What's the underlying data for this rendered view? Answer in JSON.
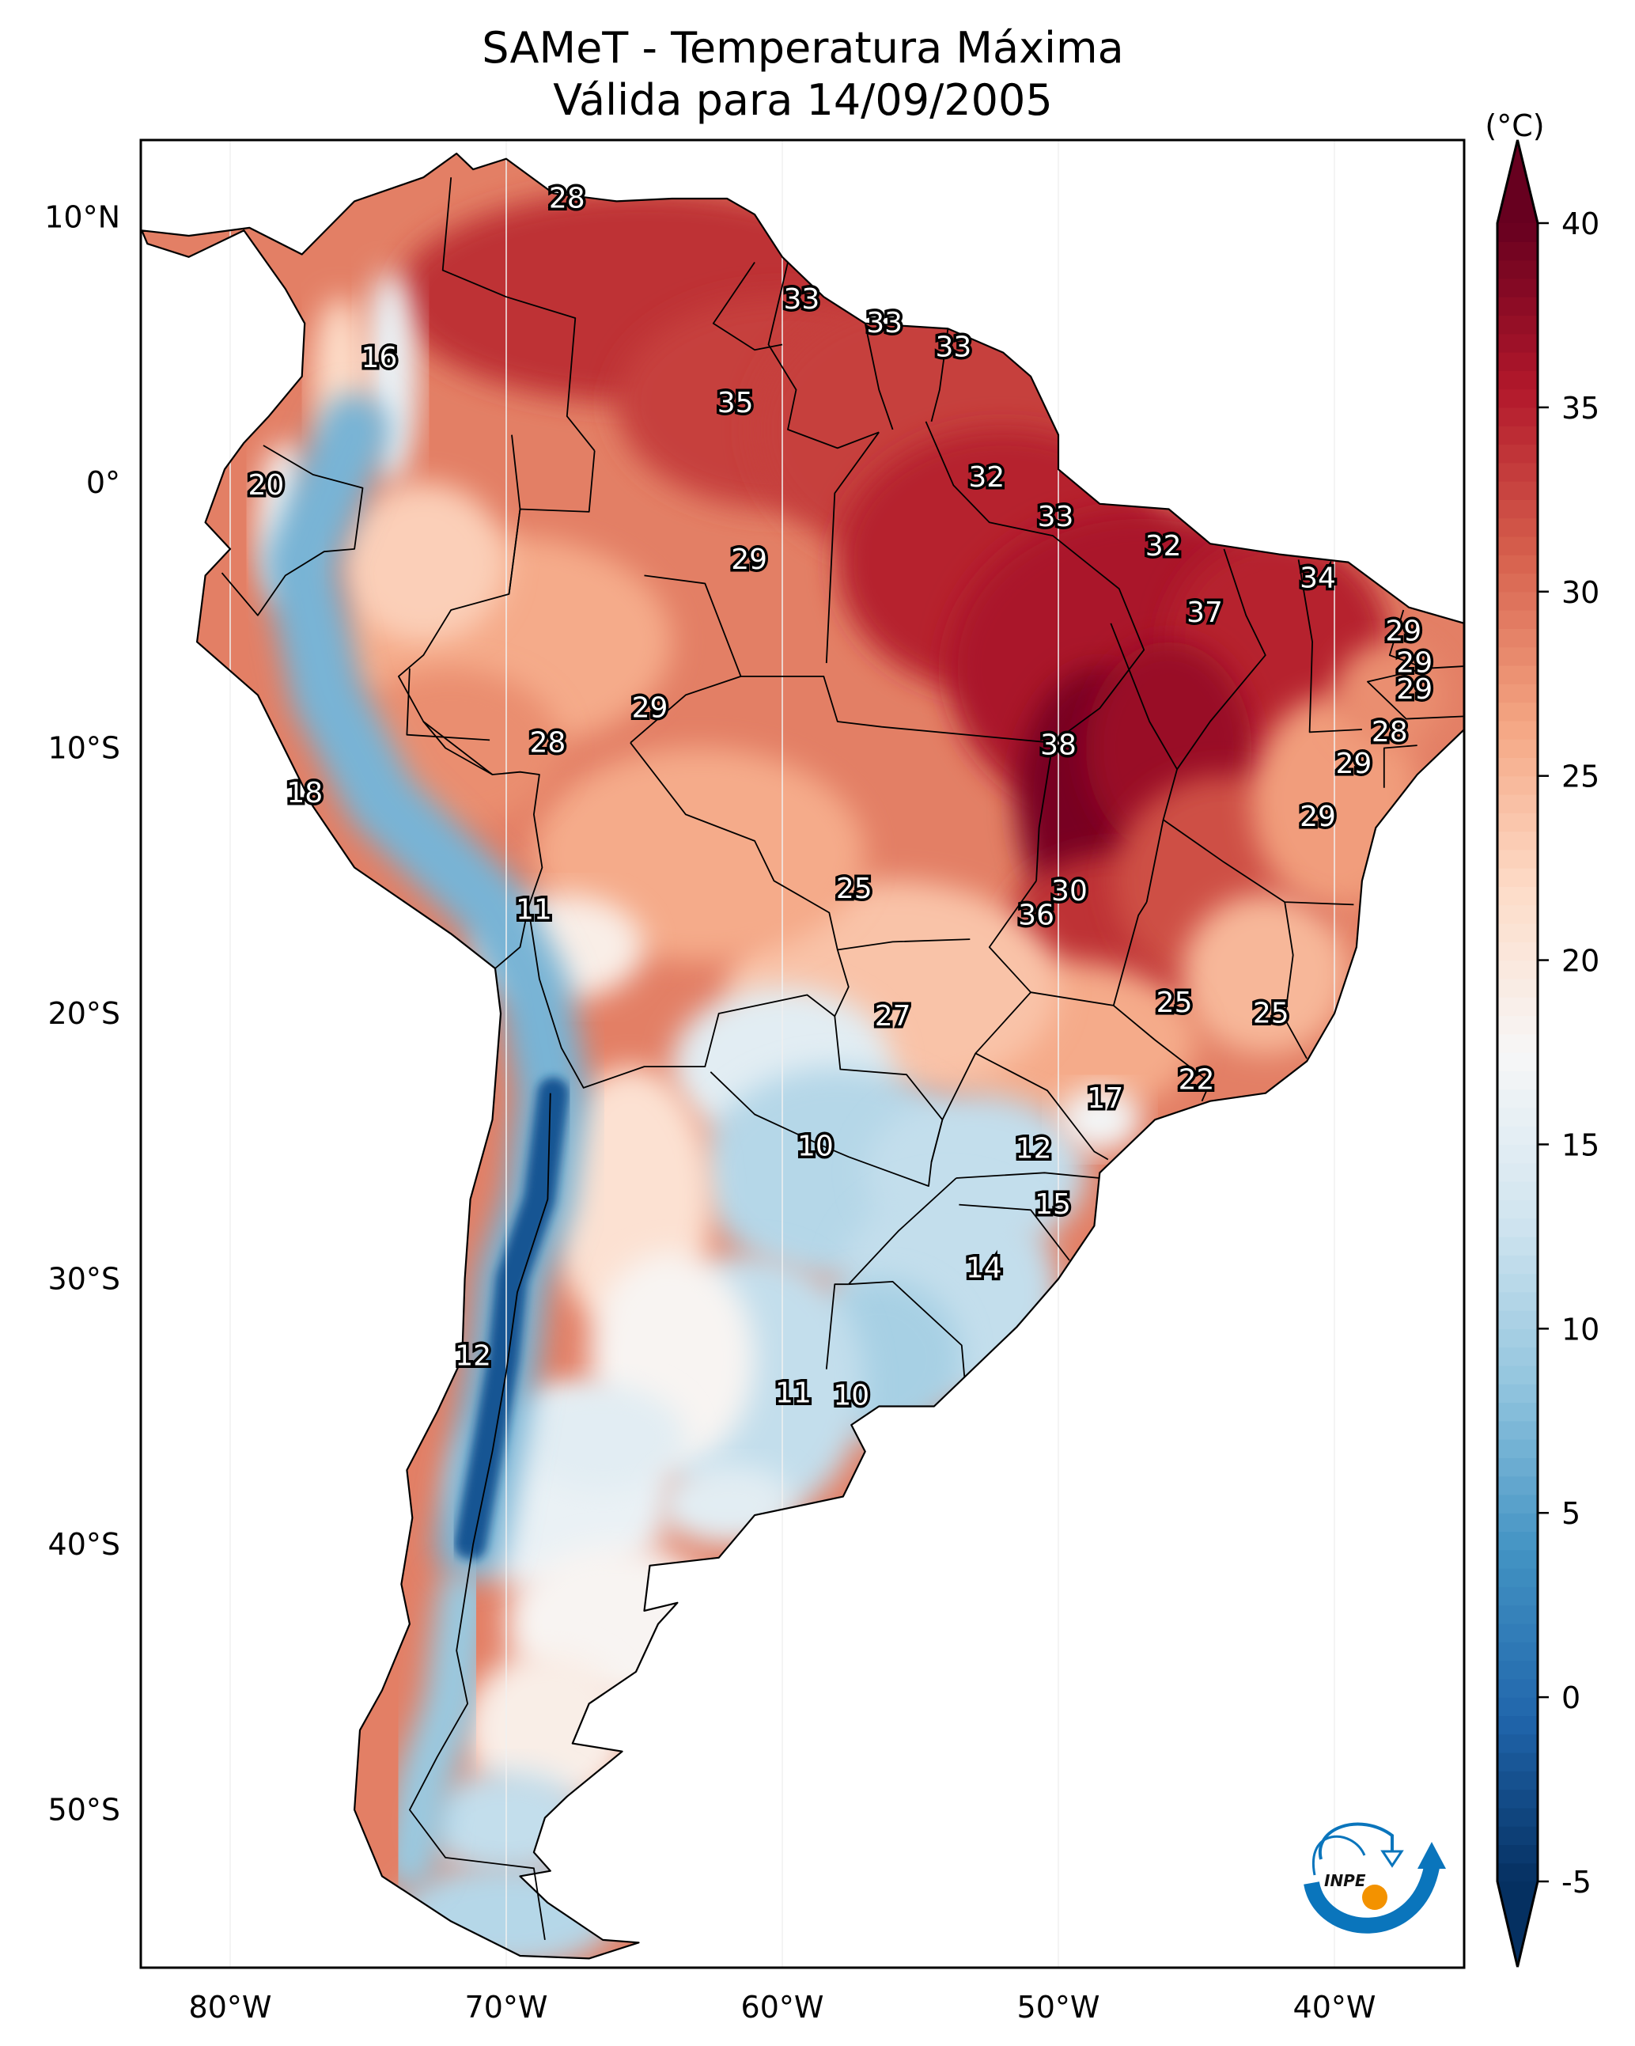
{
  "chart_data": {
    "type": "heatmap",
    "title": "SAMeT - Temperatura Máxima",
    "subtitle": "Válida para 14/09/2005",
    "xlabel": "",
    "ylabel": "",
    "projection": "PlateCarree",
    "extent_lon": [
      -83.2,
      -35.2
    ],
    "extent_lat": [
      -56.3,
      12.8
    ],
    "x_ticks": [
      {
        "value": -80,
        "label": "80°W"
      },
      {
        "value": -70,
        "label": "70°W"
      },
      {
        "value": -60,
        "label": "60°W"
      },
      {
        "value": -50,
        "label": "50°W"
      },
      {
        "value": -40,
        "label": "40°W"
      }
    ],
    "y_ticks": [
      {
        "value": 10,
        "label": "10°N"
      },
      {
        "value": 0,
        "label": "0°"
      },
      {
        "value": -10,
        "label": "10°S"
      },
      {
        "value": -20,
        "label": "20°S"
      },
      {
        "value": -30,
        "label": "30°S"
      },
      {
        "value": -40,
        "label": "40°S"
      },
      {
        "value": -50,
        "label": "50°S"
      }
    ],
    "colorbar": {
      "label": "(°C)",
      "colormap": "RdBu_r",
      "range": [
        -5,
        40
      ],
      "extend": "both",
      "ticks": [
        40,
        35,
        30,
        25,
        20,
        15,
        10,
        5,
        0,
        -5
      ],
      "tick_labels": [
        "40",
        "35",
        "30",
        "25",
        "20",
        "15",
        "10",
        "5",
        "0",
        "-5"
      ],
      "colors": [
        "#053061",
        "#2166ac",
        "#4393c3",
        "#92c5de",
        "#d1e5f0",
        "#f7f7f7",
        "#fddbc7",
        "#f4a582",
        "#d6604d",
        "#b2182b",
        "#67001f"
      ]
    },
    "station_values": [
      {
        "lon": -67.8,
        "lat": 10.7,
        "value": 28
      },
      {
        "lon": -59.3,
        "lat": 6.9,
        "value": 33
      },
      {
        "lon": -56.3,
        "lat": 6.0,
        "value": 33
      },
      {
        "lon": -53.8,
        "lat": 5.1,
        "value": 33
      },
      {
        "lon": -74.6,
        "lat": 4.7,
        "value": 16
      },
      {
        "lon": -61.7,
        "lat": 3.0,
        "value": 35
      },
      {
        "lon": -52.6,
        "lat": 0.2,
        "value": 32
      },
      {
        "lon": -78.7,
        "lat": -0.1,
        "value": 20
      },
      {
        "lon": -50.1,
        "lat": -1.3,
        "value": 33
      },
      {
        "lon": -46.2,
        "lat": -2.4,
        "value": 32
      },
      {
        "lon": -61.2,
        "lat": -2.9,
        "value": 29
      },
      {
        "lon": -40.6,
        "lat": -3.6,
        "value": 34
      },
      {
        "lon": -44.7,
        "lat": -4.9,
        "value": 37
      },
      {
        "lon": -37.5,
        "lat": -5.6,
        "value": 29
      },
      {
        "lon": -37.1,
        "lat": -6.8,
        "value": 29
      },
      {
        "lon": -37.1,
        "lat": -7.8,
        "value": 29
      },
      {
        "lon": -64.8,
        "lat": -8.5,
        "value": 29
      },
      {
        "lon": -38.0,
        "lat": -9.4,
        "value": 28
      },
      {
        "lon": -68.5,
        "lat": -9.8,
        "value": 28
      },
      {
        "lon": -50.0,
        "lat": -9.9,
        "value": 38
      },
      {
        "lon": -39.3,
        "lat": -10.6,
        "value": 29
      },
      {
        "lon": -77.3,
        "lat": -11.7,
        "value": 18
      },
      {
        "lon": -40.6,
        "lat": -12.6,
        "value": 29
      },
      {
        "lon": -57.4,
        "lat": -15.3,
        "value": 25
      },
      {
        "lon": -49.6,
        "lat": -15.4,
        "value": 30
      },
      {
        "lon": -69.0,
        "lat": -16.1,
        "value": 11
      },
      {
        "lon": -50.8,
        "lat": -16.3,
        "value": 36
      },
      {
        "lon": -45.8,
        "lat": -19.6,
        "value": 25
      },
      {
        "lon": -42.3,
        "lat": -20.0,
        "value": 25
      },
      {
        "lon": -56.0,
        "lat": -20.1,
        "value": 27
      },
      {
        "lon": -45.0,
        "lat": -22.5,
        "value": 22
      },
      {
        "lon": -48.3,
        "lat": -23.2,
        "value": 17
      },
      {
        "lon": -58.8,
        "lat": -25.0,
        "value": 10
      },
      {
        "lon": -50.9,
        "lat": -25.1,
        "value": 12
      },
      {
        "lon": -50.2,
        "lat": -27.2,
        "value": 15
      },
      {
        "lon": -52.7,
        "lat": -29.6,
        "value": 14
      },
      {
        "lon": -71.2,
        "lat": -32.9,
        "value": 12
      },
      {
        "lon": -59.6,
        "lat": -34.3,
        "value": 11
      },
      {
        "lon": -57.5,
        "lat": -34.4,
        "value": 10
      }
    ],
    "field_regions": [
      {
        "name": "Caribbean coast / Venezuela",
        "approx_value": 35
      },
      {
        "name": "Amazon basin",
        "approx_value": 30
      },
      {
        "name": "Central Brazil (Tocantins / Goiás)",
        "approx_value": 38
      },
      {
        "name": "Northeast Brazil",
        "approx_value": 36
      },
      {
        "name": "Andes (Peru/Bolivia/Chile)",
        "approx_value": 5
      },
      {
        "name": "Paraguay / southern Brazil",
        "approx_value": 11
      },
      {
        "name": "Central Argentina",
        "approx_value": 18
      },
      {
        "name": "Patagonia",
        "approx_value": 14
      }
    ]
  },
  "logo": {
    "text": "INPE",
    "colors": {
      "arc": "#0a75bc",
      "dot": "#f39200"
    }
  }
}
